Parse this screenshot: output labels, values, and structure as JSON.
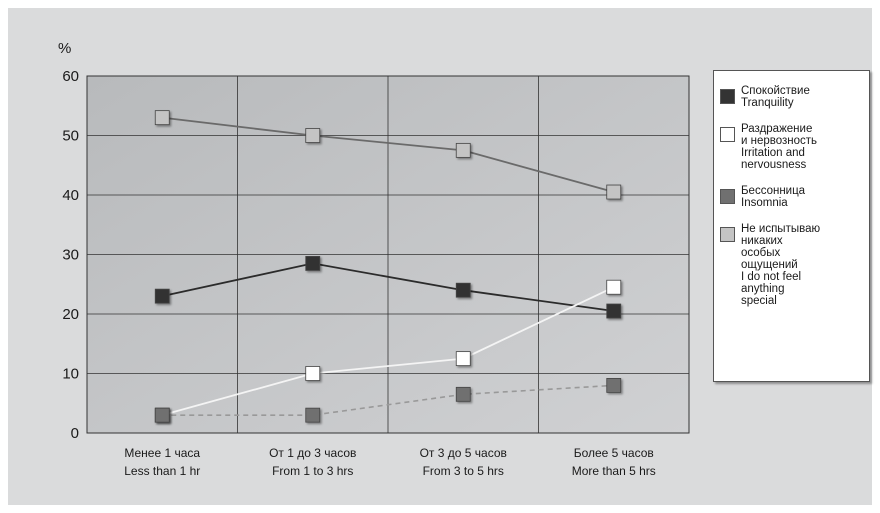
{
  "chart_data": {
    "type": "line",
    "ylabel": "%",
    "ylim": [
      0,
      60
    ],
    "yticks": [
      0,
      10,
      20,
      30,
      40,
      50,
      60
    ],
    "categories": [
      [
        "Менее 1 часа",
        "Less than 1 hr"
      ],
      [
        "От 1 до 3 часов",
        "From 1 to 3 hrs"
      ],
      [
        "От 3 до 5 часов",
        "From 3 to 5 hrs"
      ],
      [
        "Более 5 часов",
        "More than 5 hrs"
      ]
    ],
    "grid": true,
    "legend_position": "right",
    "series": [
      {
        "name": "Спокойствие\nTranquility",
        "values": [
          23,
          28.5,
          24,
          20.5
        ],
        "color": "#2b2b2b",
        "marker": "#333333",
        "dashed": false
      },
      {
        "name": "Раздражение\nи нервозность\nIrritation and\nnervousness",
        "values": [
          3,
          10,
          12.5,
          24.5
        ],
        "color": "#f4f4f4",
        "marker": "#ffffff",
        "dashed": false
      },
      {
        "name": "Бессонница\nInsomnia",
        "values": [
          3,
          3,
          6.5,
          8
        ],
        "color": "#999999",
        "marker": "#707070",
        "dashed": true
      },
      {
        "name": "Не испытываю\nникаких\nособых\nощущений\nI do not feel\nanything\nspecial",
        "values": [
          53,
          50,
          47.5,
          40.5
        ],
        "color": "#6a6a6a",
        "marker": "#c4c4c4",
        "dashed": false
      }
    ]
  }
}
